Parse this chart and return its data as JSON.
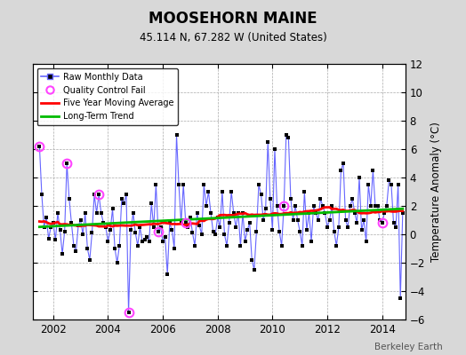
{
  "title": "MOOSEHORN MAINE",
  "subtitle": "45.114 N, 67.282 W (United States)",
  "ylabel": "Temperature Anomaly (°C)",
  "credit": "Berkeley Earth",
  "ylim": [
    -6,
    12
  ],
  "xlim": [
    2001.25,
    2014.85
  ],
  "yticks": [
    -6,
    -4,
    -2,
    0,
    2,
    4,
    6,
    8,
    10,
    12
  ],
  "xticks": [
    2002,
    2004,
    2006,
    2008,
    2010,
    2012,
    2014
  ],
  "bg_color": "#d8d8d8",
  "plot_bg_color": "#ffffff",
  "raw_color": "#6666ff",
  "marker_color": "#000000",
  "moving_avg_color": "#ff0000",
  "trend_color": "#00bb00",
  "qc_color": "#ff44ff",
  "monthly_data": [
    6.2,
    2.8,
    0.5,
    1.2,
    -0.3,
    0.5,
    0.8,
    -0.4,
    1.5,
    0.3,
    -1.4,
    0.2,
    5.0,
    2.5,
    0.8,
    -0.8,
    -1.2,
    0.6,
    1.0,
    0.0,
    1.5,
    -1.0,
    -1.8,
    0.1,
    2.8,
    1.5,
    2.8,
    1.5,
    0.8,
    0.5,
    -0.5,
    0.3,
    1.8,
    -1.0,
    -2.0,
    -0.8,
    2.5,
    2.2,
    2.8,
    -5.5,
    0.3,
    1.5,
    0.1,
    -0.8,
    0.5,
    -0.5,
    -0.4,
    -0.2,
    -0.5,
    2.2,
    0.5,
    3.5,
    0.2,
    0.5,
    -0.5,
    -0.2,
    -2.8,
    0.8,
    0.3,
    -1.0,
    7.0,
    3.5,
    0.8,
    3.5,
    0.8,
    0.5,
    1.2,
    0.1,
    -0.8,
    1.5,
    0.6,
    0.0,
    3.5,
    2.0,
    3.0,
    1.5,
    0.2,
    0.0,
    1.2,
    0.5,
    3.0,
    0.0,
    -0.8,
    0.8,
    3.0,
    1.5,
    0.5,
    1.5,
    -0.8,
    1.5,
    -0.5,
    0.3,
    0.8,
    -1.8,
    -2.5,
    0.2,
    3.5,
    2.8,
    1.0,
    1.8,
    6.5,
    2.5,
    0.3,
    6.0,
    2.0,
    0.2,
    -0.8,
    2.0,
    7.0,
    6.8,
    2.5,
    1.0,
    2.0,
    1.0,
    0.2,
    -0.8,
    3.0,
    0.3,
    1.5,
    -0.5,
    2.0,
    1.5,
    1.0,
    2.5,
    2.0,
    1.5,
    0.5,
    1.0,
    2.0,
    0.2,
    -0.8,
    0.5,
    4.5,
    5.0,
    1.0,
    0.5,
    2.0,
    2.5,
    1.5,
    0.8,
    4.0,
    0.3,
    1.0,
    -0.5,
    3.5,
    2.0,
    4.5,
    2.0,
    2.0,
    1.0,
    0.8,
    1.5,
    2.0,
    3.8,
    3.5,
    0.8,
    0.5,
    3.5,
    -4.5,
    1.5
  ],
  "qc_fail_indices": [
    0,
    12,
    26,
    39,
    52,
    64,
    107,
    150
  ],
  "trend_coeff": [
    0.03,
    0.9
  ]
}
